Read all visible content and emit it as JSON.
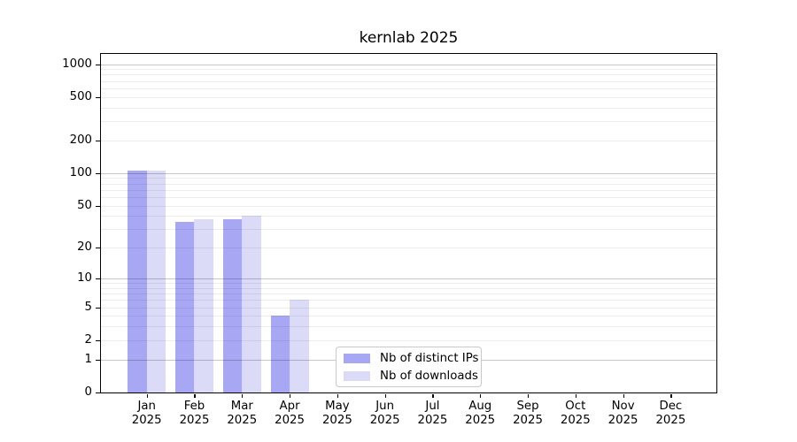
{
  "title": "kernlab 2025",
  "chart_data": {
    "type": "bar",
    "title": "kernlab 2025",
    "x_categories": [
      "Jan",
      "Feb",
      "Mar",
      "Apr",
      "May",
      "Jun",
      "Jul",
      "Aug",
      "Sep",
      "Oct",
      "Nov",
      "Dec"
    ],
    "x_sublabel": "2025",
    "series": [
      {
        "name": "Nb of distinct IPs",
        "color": "#a7a7f4",
        "values": [
          105,
          35,
          37,
          4,
          0,
          0,
          0,
          0,
          0,
          0,
          0,
          0
        ]
      },
      {
        "name": "Nb of downloads",
        "color": "#dbdbf8",
        "values": [
          105,
          37,
          40,
          6,
          0,
          0,
          0,
          0,
          0,
          0,
          0,
          0
        ]
      }
    ],
    "y_axis": {
      "scale": "log10(1+v)",
      "tick_values": [
        0,
        1,
        2,
        5,
        10,
        20,
        50,
        100,
        200,
        500,
        1000
      ],
      "major_grid_values": [
        1,
        10,
        100,
        1000
      ],
      "minor_grid_values": [
        2,
        3,
        4,
        5,
        6,
        7,
        8,
        9,
        20,
        30,
        40,
        50,
        60,
        70,
        80,
        90,
        200,
        300,
        400,
        500,
        600,
        700,
        800,
        900
      ],
      "max": 1000
    },
    "legend": {
      "position": "lower-center",
      "entries": [
        "Nb of distinct IPs",
        "Nb of downloads"
      ]
    },
    "grid": true
  }
}
